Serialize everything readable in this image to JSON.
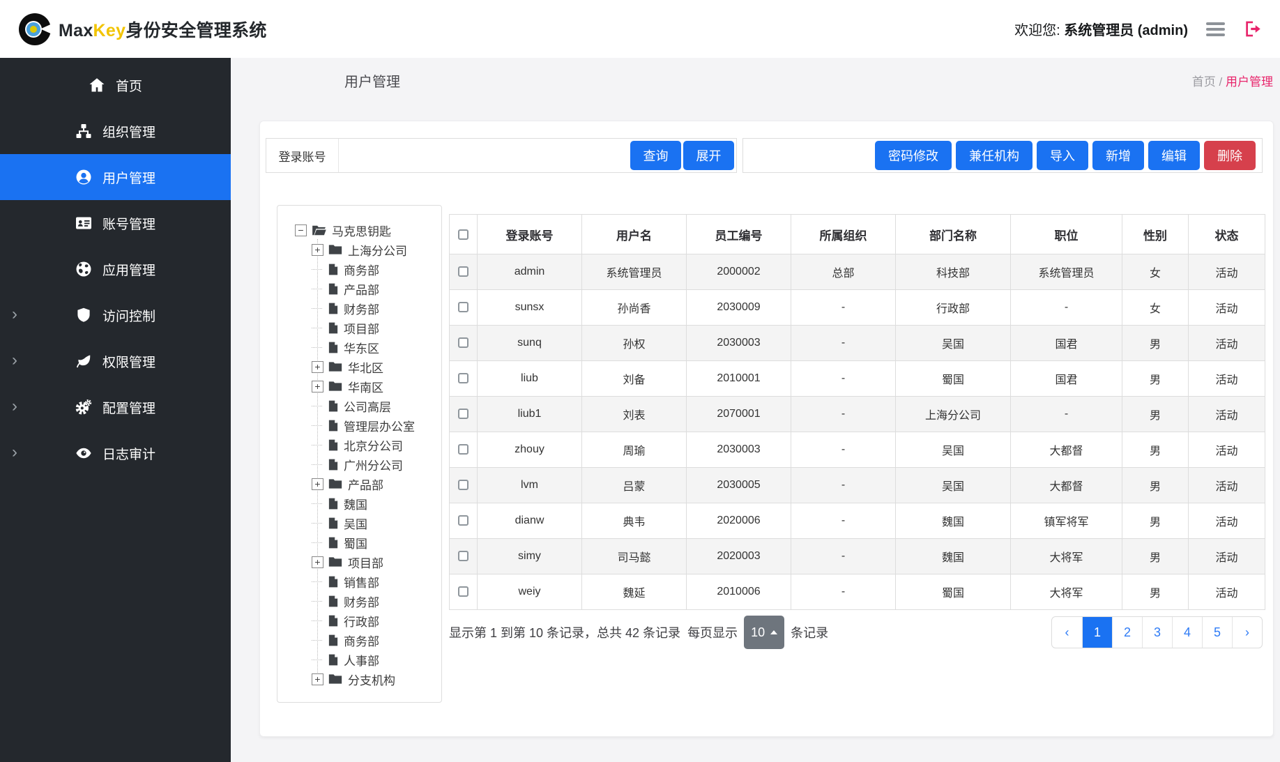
{
  "colors": {
    "primary": "#1a72f2",
    "danger": "#d6404c",
    "pink": "#e8246b",
    "sidebar": "#24282d",
    "yellow": "#f2c400",
    "secondary": "#6e757d"
  },
  "icons": {
    "chevron_right": "›",
    "expander_open": "−",
    "expander_closed": "+",
    "prev": "‹",
    "next": "›"
  },
  "header": {
    "brand": {
      "max": "Max",
      "key": "Key",
      "suffix": "身份安全管理系统"
    },
    "welcome": {
      "prefix": "欢迎您:",
      "user": "系统管理员 (admin)"
    }
  },
  "sidebar": {
    "items": [
      {
        "key": "home",
        "label": "首页",
        "icon": "home",
        "active": false,
        "expandable": false
      },
      {
        "key": "org-mgmt",
        "label": "组织管理",
        "icon": "sitemap",
        "active": false,
        "expandable": false
      },
      {
        "key": "user-mgmt",
        "label": "用户管理",
        "icon": "user-circle",
        "active": true,
        "expandable": false
      },
      {
        "key": "account-mgmt",
        "label": "账号管理",
        "icon": "id-card",
        "active": false,
        "expandable": false
      },
      {
        "key": "app-mgmt",
        "label": "应用管理",
        "icon": "globe",
        "active": false,
        "expandable": false
      },
      {
        "key": "access-control",
        "label": "访问控制",
        "icon": "shield",
        "active": false,
        "expandable": true
      },
      {
        "key": "permission-mgmt",
        "label": "权限管理",
        "icon": "leaf",
        "active": false,
        "expandable": true
      },
      {
        "key": "config-mgmt",
        "label": "配置管理",
        "icon": "cogs",
        "active": false,
        "expandable": true
      },
      {
        "key": "log-audit",
        "label": "日志审计",
        "icon": "eye",
        "active": false,
        "expandable": true
      }
    ]
  },
  "page": {
    "title": "用户管理",
    "breadcrumb": {
      "home": "首页",
      "separator": "/",
      "current": "用户管理"
    }
  },
  "search": {
    "label": "登录账号",
    "value": "",
    "query": "查询",
    "expand": "展开"
  },
  "toolbar": {
    "buttons": [
      {
        "key": "password-change",
        "label": "密码修改",
        "variant": "primary"
      },
      {
        "key": "secondary-org",
        "label": "兼任机构",
        "variant": "primary"
      },
      {
        "key": "import",
        "label": "导入",
        "variant": "primary"
      },
      {
        "key": "add",
        "label": "新增",
        "variant": "primary"
      },
      {
        "key": "edit",
        "label": "编辑",
        "variant": "primary"
      },
      {
        "key": "delete",
        "label": "删除",
        "variant": "danger"
      }
    ]
  },
  "tree": {
    "nodes": [
      {
        "label": "马克思钥匙",
        "icon": "folder-open",
        "expander": "minus",
        "level": 0
      },
      {
        "label": "上海分公司",
        "icon": "folder",
        "expander": "plus",
        "level": 1
      },
      {
        "label": "商务部",
        "icon": "file",
        "expander": null,
        "level": 1
      },
      {
        "label": "产品部",
        "icon": "file",
        "expander": null,
        "level": 1
      },
      {
        "label": "财务部",
        "icon": "file",
        "expander": null,
        "level": 1
      },
      {
        "label": "项目部",
        "icon": "file",
        "expander": null,
        "level": 1
      },
      {
        "label": "华东区",
        "icon": "file",
        "expander": null,
        "level": 1
      },
      {
        "label": "华北区",
        "icon": "folder",
        "expander": "plus",
        "level": 1
      },
      {
        "label": "华南区",
        "icon": "folder",
        "expander": "plus",
        "level": 1
      },
      {
        "label": "公司高层",
        "icon": "file",
        "expander": null,
        "level": 1
      },
      {
        "label": "管理层办公室",
        "icon": "file",
        "expander": null,
        "level": 1
      },
      {
        "label": "北京分公司",
        "icon": "file",
        "expander": null,
        "level": 1
      },
      {
        "label": "广州分公司",
        "icon": "file",
        "expander": null,
        "level": 1
      },
      {
        "label": "产品部",
        "icon": "folder",
        "expander": "plus",
        "level": 1
      },
      {
        "label": "魏国",
        "icon": "file",
        "expander": null,
        "level": 1
      },
      {
        "label": "吴国",
        "icon": "file",
        "expander": null,
        "level": 1
      },
      {
        "label": "蜀国",
        "icon": "file",
        "expander": null,
        "level": 1
      },
      {
        "label": "项目部",
        "icon": "folder",
        "expander": "plus",
        "level": 1
      },
      {
        "label": "销售部",
        "icon": "file",
        "expander": null,
        "level": 1
      },
      {
        "label": "财务部",
        "icon": "file",
        "expander": null,
        "level": 1
      },
      {
        "label": "行政部",
        "icon": "file",
        "expander": null,
        "level": 1
      },
      {
        "label": "商务部",
        "icon": "file",
        "expander": null,
        "level": 1
      },
      {
        "label": "人事部",
        "icon": "file",
        "expander": null,
        "level": 1
      },
      {
        "label": "分支机构",
        "icon": "folder",
        "expander": "plus",
        "level": 1
      }
    ]
  },
  "table": {
    "headers": [
      "登录账号",
      "用户名",
      "员工编号",
      "所属组织",
      "部门名称",
      "职位",
      "性别",
      "状态"
    ],
    "rows": [
      {
        "cells": [
          "admin",
          "系统管理员",
          "2000002",
          "总部",
          "科技部",
          "系统管理员",
          "女",
          "活动"
        ]
      },
      {
        "cells": [
          "sunsx",
          "孙尚香",
          "2030009",
          "-",
          "行政部",
          "-",
          "女",
          "活动"
        ]
      },
      {
        "cells": [
          "sunq",
          "孙权",
          "2030003",
          "-",
          "吴国",
          "国君",
          "男",
          "活动"
        ]
      },
      {
        "cells": [
          "liub",
          "刘备",
          "2010001",
          "-",
          "蜀国",
          "国君",
          "男",
          "活动"
        ]
      },
      {
        "cells": [
          "liub1",
          "刘表",
          "2070001",
          "-",
          "上海分公司",
          "-",
          "男",
          "活动"
        ]
      },
      {
        "cells": [
          "zhouy",
          "周瑜",
          "2030003",
          "-",
          "吴国",
          "大都督",
          "男",
          "活动"
        ]
      },
      {
        "cells": [
          "lvm",
          "吕蒙",
          "2030005",
          "-",
          "吴国",
          "大都督",
          "男",
          "活动"
        ]
      },
      {
        "cells": [
          "dianw",
          "典韦",
          "2020006",
          "-",
          "魏国",
          "镇军将军",
          "男",
          "活动"
        ]
      },
      {
        "cells": [
          "simy",
          "司马懿",
          "2020003",
          "-",
          "魏国",
          "大将军",
          "男",
          "活动"
        ]
      },
      {
        "cells": [
          "weiy",
          "魏延",
          "2010006",
          "-",
          "蜀国",
          "大将军",
          "男",
          "活动"
        ]
      }
    ]
  },
  "pagination": {
    "summary": "显示第 1 到第 10 条记录，总共 42 条记录",
    "per_page_prefix": "每页显示",
    "page_size": "10",
    "per_page_suffix": "条记录",
    "prev": "‹",
    "pages": [
      "1",
      "2",
      "3",
      "4",
      "5"
    ],
    "active": "1",
    "next": "›"
  }
}
